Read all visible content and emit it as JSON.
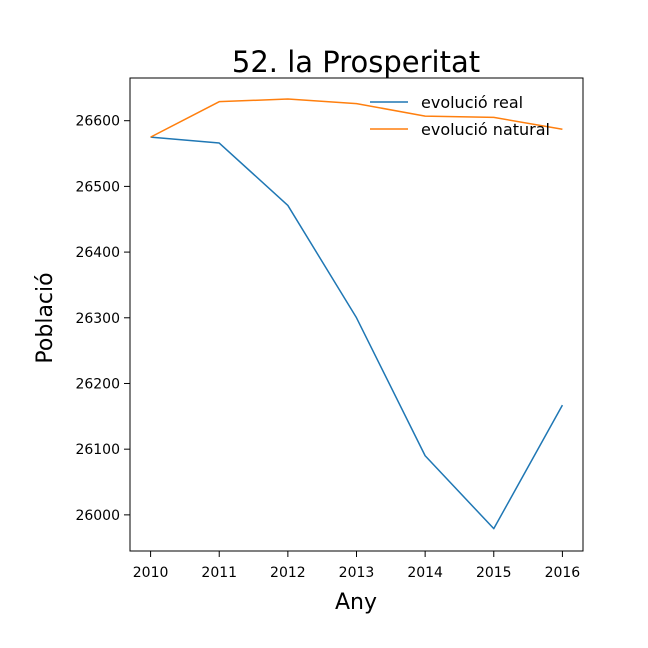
{
  "chart_data": {
    "type": "line",
    "title": "52. la Prosperitat",
    "xlabel": "Any",
    "ylabel": "Població",
    "x": [
      2010,
      2011,
      2012,
      2013,
      2014,
      2015,
      2016
    ],
    "xlim": [
      2009.7,
      2016.3
    ],
    "ylim": [
      25945,
      26665
    ],
    "yticks": [
      26000,
      26100,
      26200,
      26300,
      26400,
      26500,
      26600
    ],
    "grid": false,
    "legend_position": "top-right",
    "series": [
      {
        "name": "evolució real",
        "color": "#1f77b4",
        "values": [
          26575,
          26566,
          26471,
          26300,
          26090,
          25979,
          26167
        ]
      },
      {
        "name": "evolució natural",
        "color": "#ff7f0e",
        "values": [
          26575,
          26629,
          26633,
          26626,
          26607,
          26605,
          26587
        ]
      }
    ]
  }
}
